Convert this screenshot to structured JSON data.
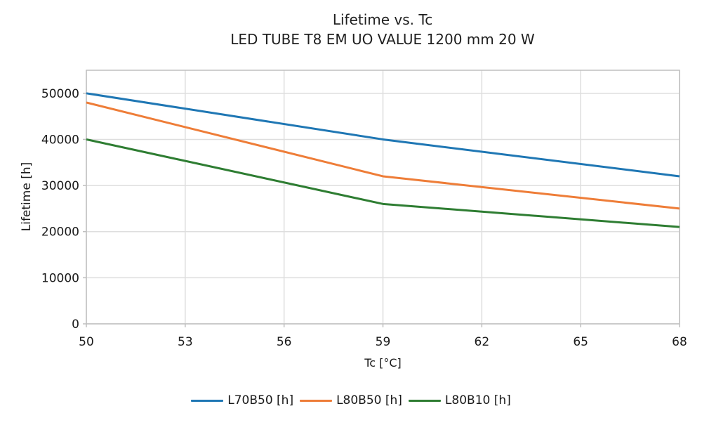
{
  "chart_data": {
    "type": "line",
    "title": "Lifetime vs. Tc",
    "subtitle": "LED TUBE T8 EM UO VALUE 1200 mm 20 W",
    "xlabel": "Tc [°C]",
    "ylabel": "Lifetime [h]",
    "x": [
      50,
      59,
      68
    ],
    "xlim": [
      50,
      68
    ],
    "ylim": [
      0,
      55000
    ],
    "xticks": [
      50,
      53,
      56,
      59,
      62,
      65,
      68
    ],
    "yticks": [
      0,
      10000,
      20000,
      30000,
      40000,
      50000
    ],
    "grid": true,
    "legend_position": "bottom",
    "colors": {
      "gridline": "#dedede",
      "frame": "#bfbfbf",
      "tick_text": "#1a1a1a"
    },
    "series": [
      {
        "name": "L70B50 [h]",
        "color": "#1f77b4",
        "values": [
          50000,
          40000,
          32000
        ]
      },
      {
        "name": "L80B50 [h]",
        "color": "#ee7d38",
        "values": [
          48000,
          32000,
          25000
        ]
      },
      {
        "name": "L80B10 [h]",
        "color": "#2e7d32",
        "values": [
          40000,
          26000,
          21000
        ]
      }
    ]
  }
}
